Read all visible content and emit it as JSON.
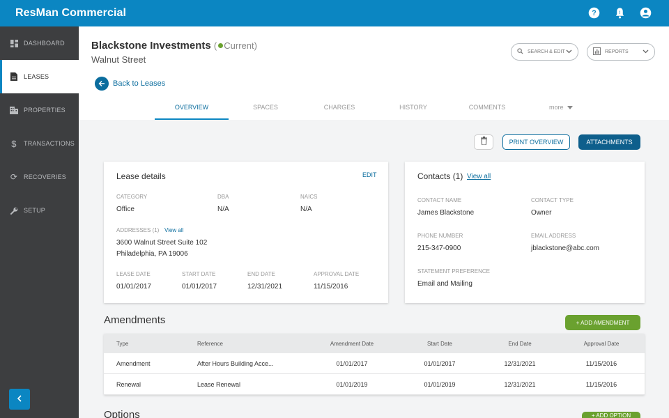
{
  "app": {
    "brand": "ResMan Commercial"
  },
  "topbar": {
    "icons": [
      "help-icon",
      "bell-icon",
      "account-icon"
    ]
  },
  "sidebar": {
    "items": [
      {
        "label": "DASHBOARD",
        "icon": "dashboard-icon"
      },
      {
        "label": "LEASES",
        "icon": "document-icon",
        "active": true
      },
      {
        "label": "PROPERTIES",
        "icon": "building-icon"
      },
      {
        "label": "TRANSACTIONS",
        "icon": "dollar-icon"
      },
      {
        "label": "RECOVERIES",
        "icon": "refresh-icon"
      },
      {
        "label": "SETUP",
        "icon": "wrench-icon"
      }
    ]
  },
  "header": {
    "title": "Blackstone Investments",
    "status": "Current",
    "status_prefix": "(",
    "status_suffix": ")",
    "subtitle": "Walnut Street",
    "search_edit_label": "SEARCH & EDIT",
    "reports_label": "REPORTS",
    "back_label": "Back to Leases"
  },
  "tabs": [
    "OVERVIEW",
    "SPACES",
    "CHARGES",
    "HISTORY",
    "COMMENTS",
    "more"
  ],
  "actions": {
    "print_label": "PRINT OVERVIEW",
    "attachments_label": "ATTACHMENTS"
  },
  "lease_details": {
    "title": "Lease details",
    "edit_label": "EDIT",
    "category_label": "CATEGORY",
    "category": "Office",
    "dba_label": "DBA",
    "dba": "N/A",
    "naics_label": "NAICS",
    "naics": "N/A",
    "addresses_label": "ADDRESSES (1)",
    "view_all": "View all",
    "address_line1": "3600 Walnut Street Suite 102",
    "address_line2": "Philadelphia, PA 19006",
    "lease_date_label": "LEASE DATE",
    "lease_date": "01/01/2017",
    "start_date_label": "START DATE",
    "start_date": "01/01/2017",
    "end_date_label": "END DATE",
    "end_date": "12/31/2021",
    "approval_date_label": "APPROVAL DATE",
    "approval_date": "11/15/2016"
  },
  "contacts": {
    "title": "Contacts (1)",
    "view_all": "View all",
    "contact_name_label": "CONTACT NAME",
    "contact_name": "James Blackstone",
    "contact_type_label": "CONTACT TYPE",
    "contact_type": "Owner",
    "phone_label": "PHONE NUMBER",
    "phone": "215-347-0900",
    "email_label": "EMAIL ADDRESS",
    "email": "jblackstone@abc.com",
    "statement_label": "STATEMENT PREFERENCE",
    "statement": "Email and Mailing"
  },
  "amendments": {
    "title": "Amendments",
    "add_label": "+ ADD AMENDMENT",
    "columns": [
      "Type",
      "Reference",
      "Amendment Date",
      "Start Date",
      "End Date",
      "Approval Date"
    ],
    "rows": [
      [
        "Amendment",
        "After Hours Building Acce...",
        "01/01/2017",
        "01/01/2017",
        "12/31/2021",
        "11/15/2016"
      ],
      [
        "Renewal",
        "Lease Renewal",
        "01/01/2019",
        "01/01/2019",
        "12/31/2021",
        "11/15/2016"
      ]
    ]
  },
  "options": {
    "title": "Options",
    "add_label": "+ ADD OPTION"
  },
  "colors": {
    "primary": "#0b86c2",
    "sidebar": "#3d3e40",
    "green": "#6aa12f",
    "dark_button": "#0e5f8c"
  }
}
